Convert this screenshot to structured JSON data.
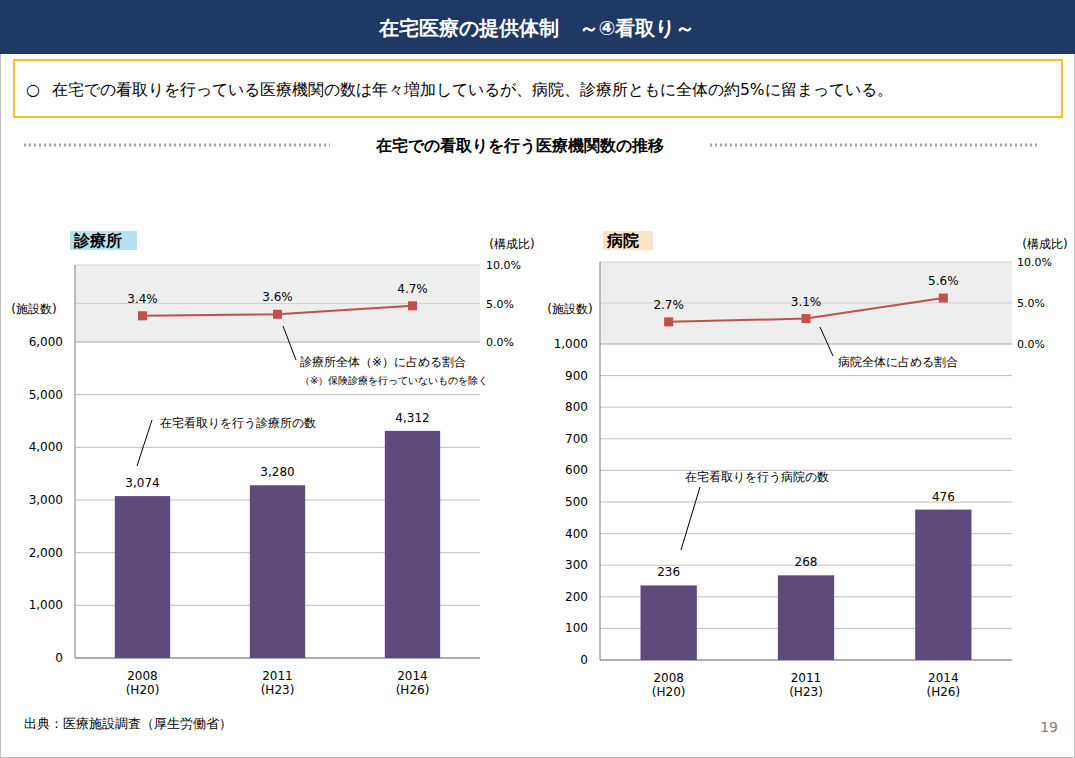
{
  "header": {
    "title": "在宅医療の提供体制　～④看取り～"
  },
  "summary": {
    "bullet": "○",
    "text": "在宅での看取りを行っている医療機関の数は年々増加しているが、病院、診療所ともに全体の約5%に留まっている。"
  },
  "section_title": "在宅での看取りを行う医療機関数の推移",
  "source": "出典：医療施設調査（厚生労働省）",
  "page_number": "19",
  "chart_data": [
    {
      "type": "bar",
      "title": "診療所",
      "categories": [
        "2008\n(H20)",
        "2011\n(H23)",
        "2014\n(H26)"
      ],
      "y_label": "(施設数)",
      "y2_label": "(構成比)",
      "note": "（※）保険診療を行っていないものを除く",
      "series": [
        {
          "name": "在宅看取りを行う診療所の数",
          "type": "bar",
          "color": "#5e4a7d",
          "values": [
            3074,
            3280,
            4312
          ],
          "value_labels": [
            "3,074",
            "3,280",
            "4,312"
          ]
        },
        {
          "name": "診療所全体（※）に占める割合",
          "type": "line",
          "axis": "y2",
          "color": "#c0504d",
          "marker": "square",
          "values": [
            3.4,
            3.6,
            4.7
          ],
          "value_labels": [
            "3.4%",
            "3.6%",
            "4.7%"
          ]
        }
      ],
      "ylim": [
        0,
        6000
      ],
      "yticks": [
        0,
        {
          "value": 1000,
          "label": "1,000"
        },
        {
          "value": 2000,
          "label": "2,000"
        },
        {
          "value": 3000,
          "label": "3,000"
        },
        {
          "value": 4000,
          "label": "4,000"
        },
        {
          "value": 5000,
          "label": "5,000"
        },
        {
          "value": 6000,
          "label": "6,000"
        }
      ],
      "y2lim": [
        0,
        10
      ],
      "y2ticks": [
        {
          "value": 0,
          "label": "0.0%"
        },
        {
          "value": 5,
          "label": "5.0%"
        },
        {
          "value": 10,
          "label": "10.0%"
        }
      ],
      "grid": true,
      "data_labels": true
    },
    {
      "type": "bar",
      "title": "病院",
      "categories": [
        "2008\n(H20)",
        "2011\n(H23)",
        "2014\n(H26)"
      ],
      "y_label": "(施設数)",
      "y2_label": "(構成比)",
      "series": [
        {
          "name": "在宅看取りを行う病院の数",
          "type": "bar",
          "color": "#5e4a7d",
          "values": [
            236,
            268,
            476
          ]
        },
        {
          "name": "病院全体に占める割合",
          "type": "line",
          "axis": "y2",
          "color": "#c0504d",
          "marker": "square",
          "values": [
            2.7,
            3.1,
            5.6
          ],
          "value_labels": [
            "2.7%",
            "3.1%",
            "5.6%"
          ]
        }
      ],
      "ylim": [
        0,
        1000
      ],
      "yticks": [
        0,
        100,
        200,
        300,
        400,
        500,
        600,
        700,
        800,
        900,
        {
          "value": 1000,
          "label": "1,000"
        }
      ],
      "y2lim": [
        0,
        10
      ],
      "y2ticks": [
        {
          "value": 0,
          "label": "0.0%"
        },
        {
          "value": 5,
          "label": "5.0%"
        },
        {
          "value": 10,
          "label": "10.0%"
        }
      ],
      "grid": true,
      "data_labels": true
    }
  ]
}
